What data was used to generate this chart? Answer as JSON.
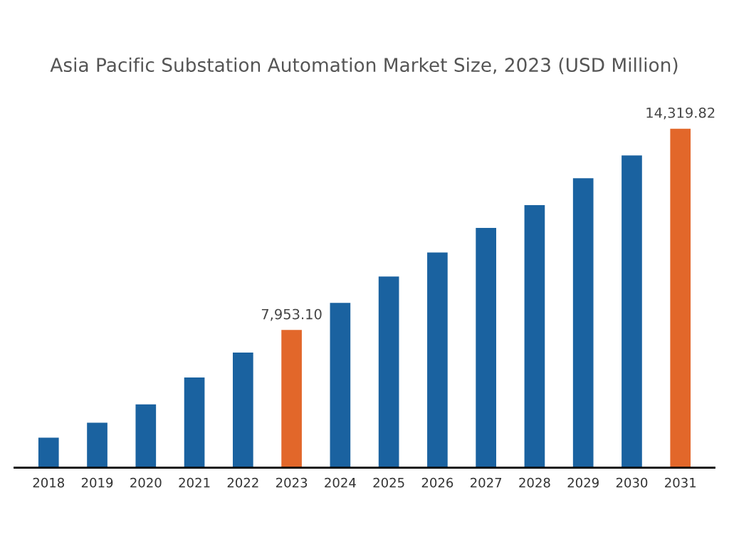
{
  "chart_data": {
    "type": "bar",
    "title": "Asia Pacific Substation Automation Market Size, 2023 (USD Million)",
    "categories": [
      "2018",
      "2019",
      "2020",
      "2021",
      "2022",
      "2023",
      "2024",
      "2025",
      "2026",
      "2027",
      "2028",
      "2029",
      "2030",
      "2031"
    ],
    "ylim": [
      3600,
      14319.82
    ],
    "values": [
      4550,
      5020,
      5600,
      6450,
      7240,
      7953.1,
      8810,
      9640,
      10400,
      11180,
      11900,
      12750,
      13470,
      14319.82
    ],
    "colors": [
      "#1a62a0",
      "#1a62a0",
      "#1a62a0",
      "#1a62a0",
      "#1a62a0",
      "#e2672a",
      "#1a62a0",
      "#1a62a0",
      "#1a62a0",
      "#1a62a0",
      "#1a62a0",
      "#1a62a0",
      "#1a62a0",
      "#e2672a"
    ],
    "value_labels": [
      null,
      null,
      null,
      null,
      null,
      "7,953.10",
      null,
      null,
      null,
      null,
      null,
      null,
      null,
      "14,319.82"
    ],
    "grid": false,
    "legend": false
  }
}
